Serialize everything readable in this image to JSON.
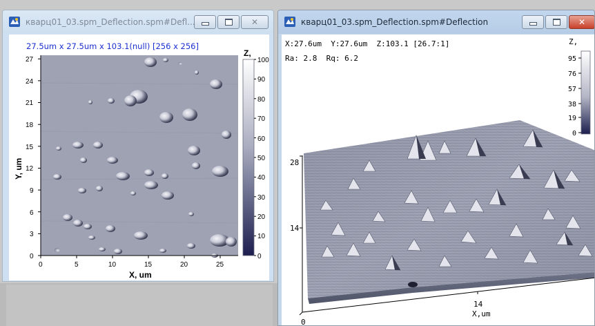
{
  "left_window": {
    "title": "кварц01_03.spm_Deflection.spm#Defl...",
    "header": "27.5um x 27.5um x 103.1(null) [256 x 256]",
    "x_axis": {
      "label": "X, um",
      "ticks": [
        "0",
        "5",
        "10",
        "15",
        "20",
        "25"
      ]
    },
    "y_axis": {
      "label": "Y, um",
      "ticks": [
        "0",
        "3",
        "6",
        "9",
        "12",
        "15",
        "18",
        "21",
        "24",
        "27"
      ]
    },
    "colorbar": {
      "title": "Z,",
      "ticks": [
        "0",
        "10",
        "20",
        "30",
        "40",
        "50",
        "60",
        "70",
        "80",
        "90",
        "100"
      ]
    }
  },
  "right_window": {
    "title": "кварц01_03.spm_Deflection.spm#Deflection",
    "readout_line": "X:27.6um  Y:27.6um  Z:103.1 [26.7:1]",
    "roughness_line": "Ra: 2.8  Rq: 6.2",
    "colorbar": {
      "title": "Z,",
      "ticks": [
        "95",
        "76",
        "57",
        "38",
        "19",
        "0"
      ]
    },
    "axis_labels": {
      "y_top": "28",
      "y_mid": "14",
      "x_mid": "14",
      "x_unit": "X,um",
      "origin": "0"
    }
  },
  "colors": {
    "map_gray": "#9ea2b3",
    "colorbar_top": "#ffffff",
    "colorbar_bottom": "#1c1e4e",
    "header_blue": "#1c2fd0",
    "close_red": "#c7412a"
  },
  "icons": {
    "app": "spm-app-icon",
    "minimize": "minimize-icon",
    "maximize": "maximize-icon",
    "close": "close-icon"
  }
}
